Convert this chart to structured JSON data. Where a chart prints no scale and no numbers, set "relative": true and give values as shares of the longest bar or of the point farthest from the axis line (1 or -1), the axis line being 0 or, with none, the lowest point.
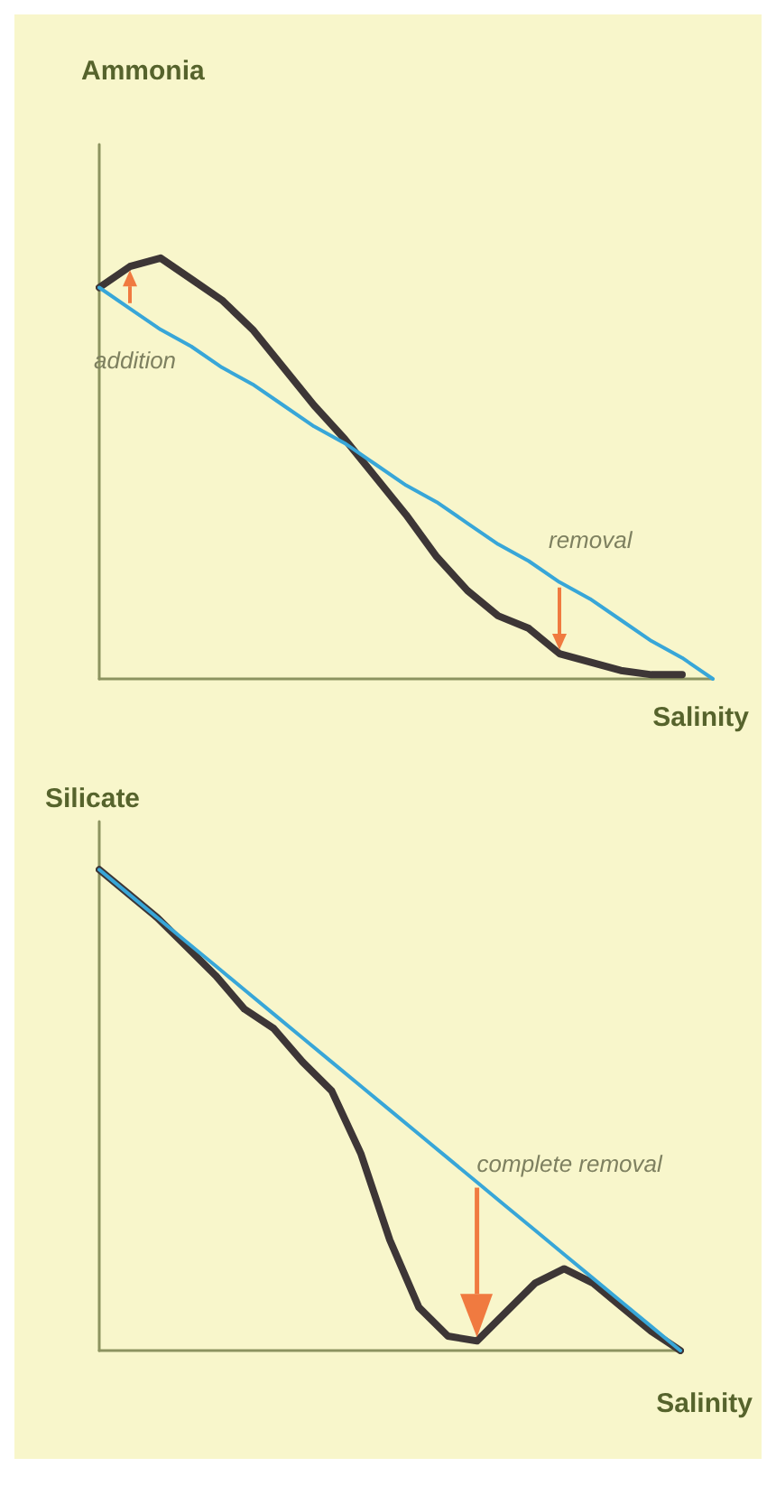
{
  "chart_data": [
    {
      "type": "line",
      "ylabel": "Ammonia",
      "xlabel": "Salinity",
      "relative": true,
      "categories": [
        null,
        null,
        null,
        null,
        null,
        null,
        null,
        null,
        null,
        null,
        null,
        null,
        null,
        null,
        null,
        null,
        null,
        null,
        null,
        null,
        null
      ],
      "series": [
        {
          "color": "#3d3636",
          "values": [
            0.93,
            0.98,
            1,
            0.95,
            0.9,
            0.83,
            0.74,
            0.65,
            0.57,
            0.48,
            0.39,
            0.29,
            0.21,
            0.15,
            0.12,
            0.06,
            0.04,
            0.02,
            0.01,
            0.01,
            null
          ]
        },
        {
          "color": "#38a6d8",
          "values": [
            0.93,
            0.88,
            0.83,
            0.79,
            0.74,
            0.7,
            0.65,
            0.6,
            0.56,
            0.51,
            0.46,
            0.42,
            0.37,
            0.32,
            0.28,
            0.23,
            0.19,
            0.14,
            0.09,
            0.05,
            0
          ]
        }
      ],
      "annotations": [
        "addition",
        "removal"
      ]
    },
    {
      "type": "line",
      "ylabel": "Silicate",
      "xlabel": "Salinity",
      "relative": true,
      "categories": [
        null,
        null,
        null,
        null,
        null,
        null,
        null,
        null,
        null,
        null,
        null,
        null,
        null,
        null,
        null,
        null,
        null,
        null,
        null,
        null,
        null
      ],
      "series": [
        {
          "color": "#3d3636",
          "values": [
            1,
            0.95,
            0.9,
            0.84,
            0.78,
            0.71,
            0.67,
            0.6,
            0.54,
            0.41,
            0.23,
            0.09,
            0.03,
            0.02,
            0.08,
            0.14,
            0.17,
            0.14,
            0.09,
            0.04,
            0
          ]
        },
        {
          "color": "#38a6d8",
          "values": [
            1,
            0.95,
            0.9,
            0.85,
            0.8,
            0.75,
            0.7,
            0.65,
            0.6,
            0.55,
            0.5,
            0.45,
            0.4,
            0.35,
            0.3,
            0.25,
            0.2,
            0.15,
            0.1,
            0.05,
            0
          ]
        }
      ],
      "annotations": [
        "complete removal"
      ]
    }
  ]
}
